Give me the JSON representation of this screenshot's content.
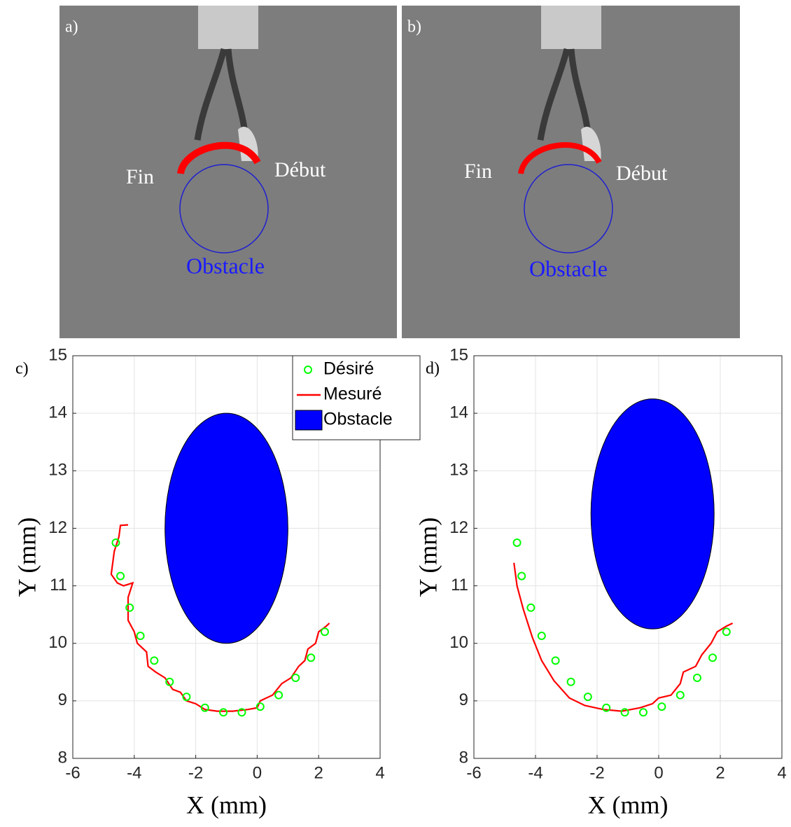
{
  "photos": [
    {
      "label": "a)",
      "annotations": [
        "Fin",
        "Début",
        "Obstacle"
      ]
    },
    {
      "label": "b)",
      "annotations": [
        "Fin",
        "Début",
        "Obstacle"
      ]
    }
  ],
  "chart_data": [
    {
      "type": "scatter",
      "panel_label": "c)",
      "x_label": "X (mm)",
      "y_label": "Y (mm)",
      "xlim": [
        -6,
        4
      ],
      "xticks": [
        -6,
        -4,
        -2,
        0,
        2,
        4
      ],
      "ylim": [
        8,
        15
      ],
      "yticks": [
        8,
        9,
        10,
        11,
        12,
        13,
        14,
        15
      ],
      "grid": true,
      "legend": "northeast",
      "series": [
        {
          "name": "Désiré",
          "type": "scatter",
          "color": "#00ff00",
          "x": [
            -4.6,
            -4.45,
            -4.15,
            -3.8,
            -3.35,
            -2.85,
            -2.3,
            -1.7,
            -1.1,
            -0.5,
            0.1,
            0.7,
            1.25,
            1.75,
            2.2
          ],
          "y": [
            11.75,
            11.17,
            10.62,
            10.13,
            9.7,
            9.33,
            9.07,
            8.88,
            8.8,
            8.8,
            8.9,
            9.1,
            9.4,
            9.75,
            10.2
          ]
        },
        {
          "name": "Mesuré",
          "type": "line",
          "color": "#ff0000",
          "x": [
            -4.2,
            -4.45,
            -4.5,
            -4.65,
            -4.75,
            -4.55,
            -4.35,
            -4.05,
            -4.2,
            -4.2,
            -4.0,
            -3.9,
            -3.6,
            -3.55,
            -3.3,
            -3.0,
            -2.75,
            -2.5,
            -2.3,
            -2.0,
            -1.7,
            -1.3,
            -0.8,
            -0.3,
            0,
            0.1,
            0.5,
            0.8,
            1.1,
            1.35,
            1.55,
            1.65,
            1.9,
            2.0,
            2.25,
            2.35
          ],
          "y": [
            12.06,
            12.05,
            11.85,
            11.6,
            11.2,
            11.05,
            11.0,
            11.05,
            10.8,
            10.4,
            10.2,
            10.0,
            9.85,
            9.6,
            9.5,
            9.4,
            9.2,
            9.15,
            9.0,
            8.95,
            8.85,
            8.82,
            8.82,
            8.85,
            8.88,
            9.0,
            9.1,
            9.3,
            9.4,
            9.6,
            9.7,
            9.9,
            10.0,
            10.2,
            10.3,
            10.35
          ]
        },
        {
          "name": "Obstacle",
          "type": "ellipse",
          "color": "#0000ff",
          "center": [
            -1,
            12
          ],
          "radius": 2
        }
      ]
    },
    {
      "type": "scatter",
      "panel_label": "d)",
      "x_label": "X (mm)",
      "y_label": "Y (mm)",
      "xlim": [
        -6,
        4
      ],
      "xticks": [
        -6,
        -4,
        -2,
        0,
        2,
        4
      ],
      "ylim": [
        8,
        15
      ],
      "yticks": [
        8,
        9,
        10,
        11,
        12,
        13,
        14,
        15
      ],
      "grid": true,
      "series": [
        {
          "type": "scatter",
          "color": "#00ff00",
          "x": [
            -4.6,
            -4.45,
            -4.15,
            -3.8,
            -3.35,
            -2.85,
            -2.3,
            -1.7,
            -1.1,
            -0.5,
            0.1,
            0.7,
            1.25,
            1.75,
            2.2
          ],
          "y": [
            11.75,
            11.17,
            10.62,
            10.13,
            9.7,
            9.33,
            9.07,
            8.88,
            8.8,
            8.8,
            8.9,
            9.1,
            9.4,
            9.75,
            10.2
          ]
        },
        {
          "type": "line",
          "color": "#ff0000",
          "x": [
            -4.7,
            -4.6,
            -4.4,
            -4.1,
            -3.8,
            -3.4,
            -2.9,
            -2.4,
            -1.8,
            -1.2,
            -0.6,
            -0.2,
            0,
            0.4,
            0.7,
            0.8,
            1.2,
            1.4,
            1.7,
            1.9,
            2.2,
            2.4
          ],
          "y": [
            11.4,
            11.0,
            10.6,
            10.1,
            9.7,
            9.35,
            9.05,
            8.92,
            8.85,
            8.82,
            8.88,
            8.95,
            9.05,
            9.1,
            9.3,
            9.5,
            9.6,
            9.8,
            10.0,
            10.2,
            10.3,
            10.35
          ]
        },
        {
          "type": "ellipse",
          "color": "#0000ff",
          "center": [
            -0.2,
            12.25
          ],
          "radius": 2
        }
      ]
    }
  ]
}
